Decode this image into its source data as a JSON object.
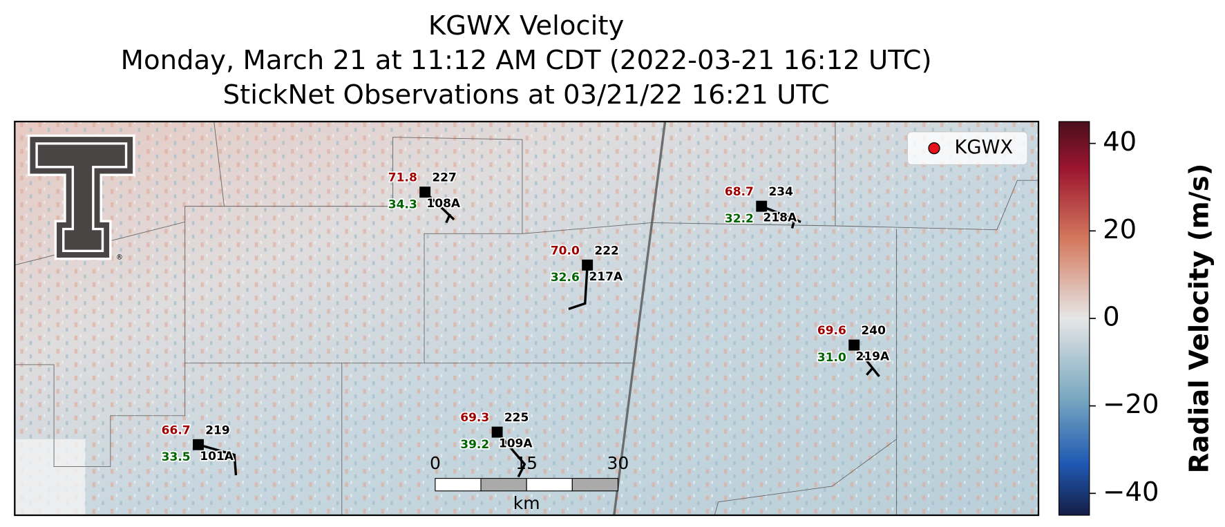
{
  "header": {
    "title_lines": [
      "KGWX Velocity",
      "Monday, March 21 at 11:12 AM CDT (2022-03-21 16:12 UTC)",
      "StickNet Observations at 03/21/22 16:21 UTC"
    ]
  },
  "logo_mark": "®",
  "legend": {
    "label": "KGWX",
    "color": "#e8101a"
  },
  "stations": [
    {
      "id": "108A",
      "temperature": "71.8",
      "dewpoint": "34.3",
      "code": "227"
    },
    {
      "id": "218A",
      "temperature": "68.7",
      "dewpoint": "32.2",
      "code": "234"
    },
    {
      "id": "217A",
      "temperature": "70.0",
      "dewpoint": "32.6",
      "code": "222"
    },
    {
      "id": "219A",
      "temperature": "69.6",
      "dewpoint": "31.0",
      "code": "240"
    },
    {
      "id": "101A",
      "temperature": "66.7",
      "dewpoint": "33.5",
      "code": "219"
    },
    {
      "id": "109A",
      "temperature": "69.3",
      "dewpoint": "39.2",
      "code": "225"
    }
  ],
  "scale_bar": {
    "ticks": [
      0,
      15,
      30
    ],
    "unit": "km"
  },
  "colorbar": {
    "label": "Radial Velocity (m/s)",
    "lim": [
      -45,
      45
    ],
    "ticks": [
      40,
      20,
      0,
      {
        "value": -20,
        "label": "−20"
      },
      {
        "value": -40,
        "label": "−40"
      }
    ]
  }
}
